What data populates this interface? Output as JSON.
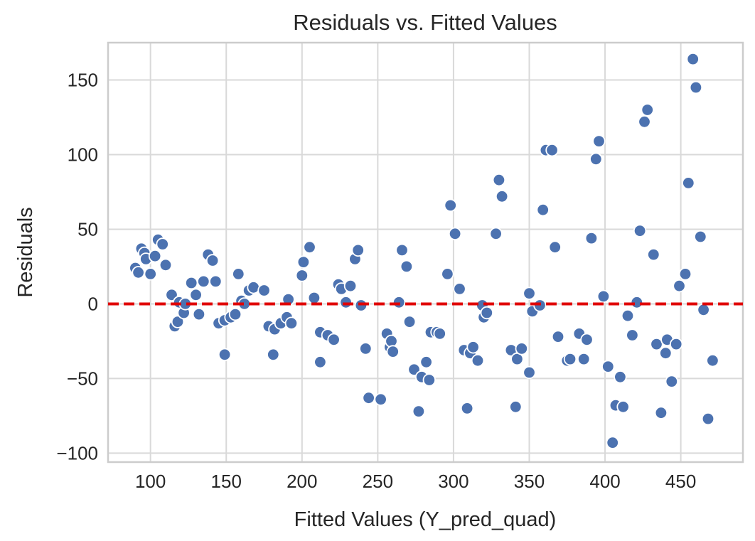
{
  "title": "Residuals vs. Fitted Values",
  "chart_data": {
    "type": "scatter",
    "title": "Residuals vs. Fitted Values",
    "xlabel": "Fitted Values (Y_pred_quad)",
    "ylabel": "Residuals",
    "xlim": [
      72,
      491
    ],
    "ylim": [
      -106,
      175
    ],
    "xticks": [
      100,
      150,
      200,
      250,
      300,
      350,
      400,
      450
    ],
    "yticks": [
      -100,
      -50,
      0,
      50,
      100,
      150
    ],
    "grid": true,
    "legend_position": "none",
    "marker_color": "#4c72b0",
    "marker_edge_color": "#ffffff",
    "grid_color": "#d9d9d9",
    "ref_line": {
      "y": 0,
      "color": "#e00000",
      "style": "dashed"
    },
    "points": [
      [
        90,
        24
      ],
      [
        92,
        21
      ],
      [
        94,
        37
      ],
      [
        96,
        34
      ],
      [
        97,
        30
      ],
      [
        100,
        20
      ],
      [
        103,
        32
      ],
      [
        105,
        43
      ],
      [
        108,
        40
      ],
      [
        110,
        26
      ],
      [
        114,
        6
      ],
      [
        116,
        -15
      ],
      [
        118,
        -12
      ],
      [
        119,
        1
      ],
      [
        122,
        -6
      ],
      [
        123,
        0
      ],
      [
        127,
        14
      ],
      [
        130,
        6
      ],
      [
        132,
        -7
      ],
      [
        135,
        15
      ],
      [
        138,
        33
      ],
      [
        141,
        29
      ],
      [
        143,
        15
      ],
      [
        145,
        -13
      ],
      [
        149,
        -11
      ],
      [
        149,
        -34
      ],
      [
        153,
        -9
      ],
      [
        156,
        -7
      ],
      [
        158,
        20
      ],
      [
        160,
        2
      ],
      [
        162,
        0
      ],
      [
        165,
        9
      ],
      [
        168,
        11
      ],
      [
        175,
        9
      ],
      [
        178,
        -15
      ],
      [
        181,
        -34
      ],
      [
        182,
        -17
      ],
      [
        186,
        -13
      ],
      [
        190,
        -9
      ],
      [
        191,
        3
      ],
      [
        193,
        -13
      ],
      [
        200,
        19
      ],
      [
        201,
        28
      ],
      [
        205,
        38
      ],
      [
        208,
        4
      ],
      [
        212,
        -19
      ],
      [
        212,
        -39
      ],
      [
        217,
        -21
      ],
      [
        221,
        -24
      ],
      [
        224,
        13
      ],
      [
        226,
        10
      ],
      [
        229,
        1
      ],
      [
        232,
        12
      ],
      [
        235,
        30
      ],
      [
        237,
        36
      ],
      [
        239,
        -1
      ],
      [
        242,
        -30
      ],
      [
        244,
        -63
      ],
      [
        252,
        -64
      ],
      [
        256,
        -20
      ],
      [
        258,
        -29
      ],
      [
        259,
        -25
      ],
      [
        260,
        -32
      ],
      [
        264,
        1
      ],
      [
        266,
        36
      ],
      [
        269,
        25
      ],
      [
        271,
        -12
      ],
      [
        274,
        -44
      ],
      [
        277,
        -72
      ],
      [
        279,
        -49
      ],
      [
        282,
        -39
      ],
      [
        284,
        -51
      ],
      [
        285,
        -19
      ],
      [
        289,
        -19
      ],
      [
        291,
        -20
      ],
      [
        296,
        20
      ],
      [
        298,
        66
      ],
      [
        301,
        47
      ],
      [
        304,
        10
      ],
      [
        307,
        -31
      ],
      [
        309,
        -70
      ],
      [
        311,
        -33
      ],
      [
        313,
        -29
      ],
      [
        316,
        -38
      ],
      [
        319,
        -1
      ],
      [
        320,
        -9
      ],
      [
        322,
        -6
      ],
      [
        328,
        47
      ],
      [
        330,
        83
      ],
      [
        332,
        72
      ],
      [
        338,
        -31
      ],
      [
        341,
        -69
      ],
      [
        342,
        -37
      ],
      [
        345,
        -30
      ],
      [
        350,
        7
      ],
      [
        350,
        -46
      ],
      [
        352,
        -5
      ],
      [
        357,
        -1
      ],
      [
        359,
        63
      ],
      [
        361,
        103
      ],
      [
        365,
        103
      ],
      [
        367,
        38
      ],
      [
        369,
        -22
      ],
      [
        375,
        -38
      ],
      [
        377,
        -37
      ],
      [
        383,
        -20
      ],
      [
        386,
        -37
      ],
      [
        388,
        -24
      ],
      [
        391,
        44
      ],
      [
        394,
        97
      ],
      [
        396,
        109
      ],
      [
        399,
        5
      ],
      [
        402,
        -42
      ],
      [
        405,
        -93
      ],
      [
        407,
        -68
      ],
      [
        410,
        -49
      ],
      [
        412,
        -69
      ],
      [
        415,
        -8
      ],
      [
        418,
        -21
      ],
      [
        421,
        1
      ],
      [
        423,
        49
      ],
      [
        426,
        122
      ],
      [
        428,
        130
      ],
      [
        432,
        33
      ],
      [
        434,
        -27
      ],
      [
        437,
        -73
      ],
      [
        440,
        -33
      ],
      [
        441,
        -24
      ],
      [
        444,
        -52
      ],
      [
        447,
        -27
      ],
      [
        449,
        12
      ],
      [
        453,
        20
      ],
      [
        455,
        81
      ],
      [
        458,
        164
      ],
      [
        460,
        145
      ],
      [
        463,
        45
      ],
      [
        465,
        -4
      ],
      [
        468,
        -77
      ],
      [
        471,
        -38
      ]
    ]
  }
}
